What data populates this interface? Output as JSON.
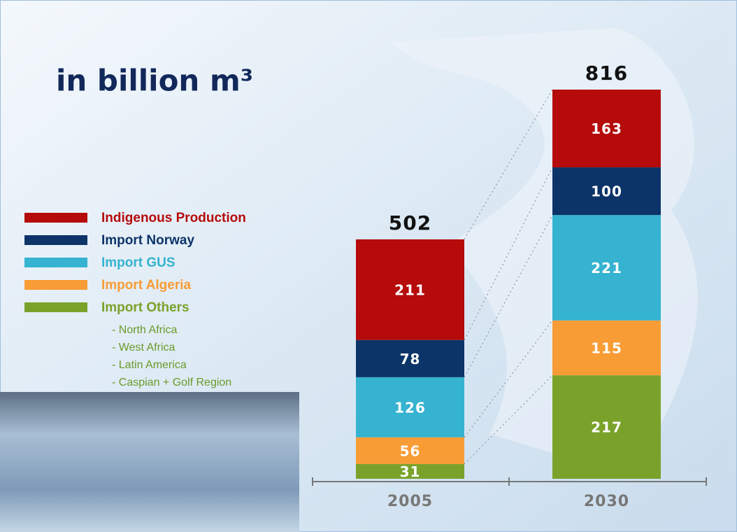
{
  "chart_data": {
    "type": "stacked_bar",
    "title": "in billion m³",
    "categories": [
      "2005",
      "2030"
    ],
    "series": [
      {
        "name": "Import Others",
        "color": "#7aa22a",
        "values": [
          31,
          217
        ]
      },
      {
        "name": "Import Algeria",
        "color": "#f89c35",
        "values": [
          56,
          115
        ]
      },
      {
        "name": "Import GUS",
        "color": "#35b3d0",
        "values": [
          126,
          221
        ]
      },
      {
        "name": "Import Norway",
        "color": "#0c3468",
        "values": [
          78,
          100
        ]
      },
      {
        "name": "Indigenous Production",
        "color": "#b50b0b",
        "values": [
          211,
          163
        ]
      }
    ],
    "totals": [
      502,
      816
    ],
    "legend_subitems": [
      "- North Africa",
      "- West Africa",
      "- Latin America",
      "- Caspian + Golf Region"
    ]
  }
}
